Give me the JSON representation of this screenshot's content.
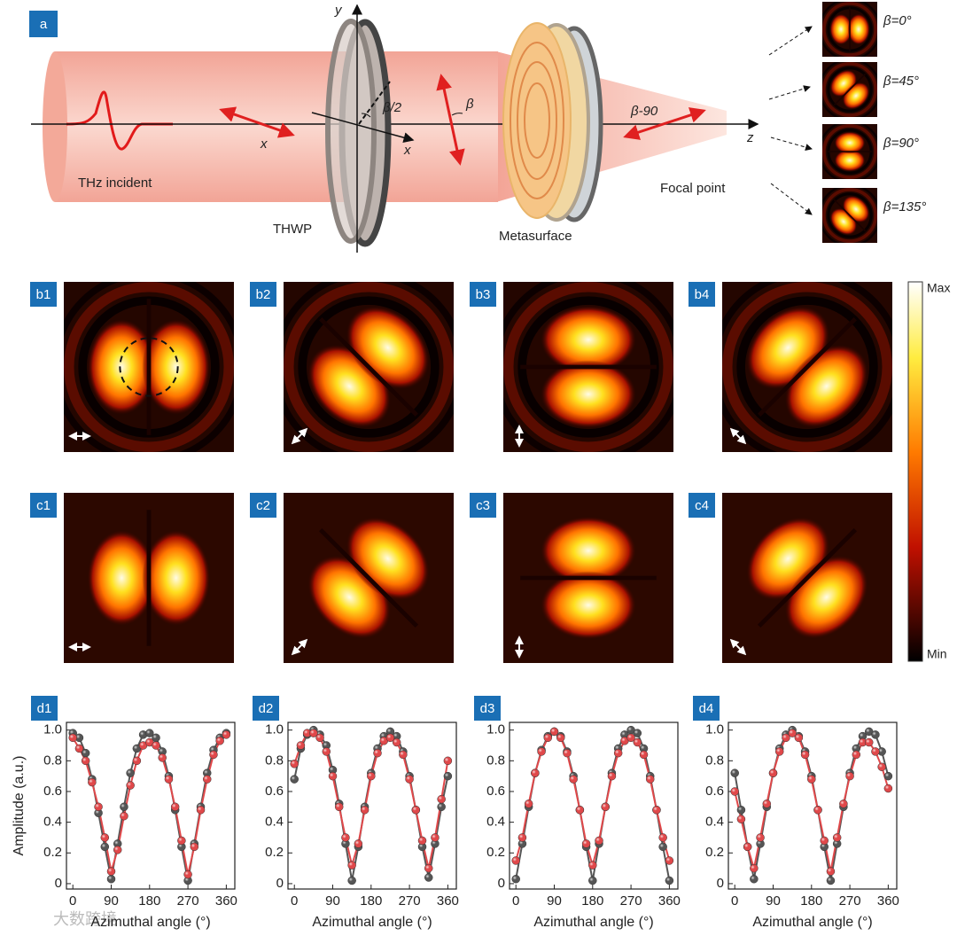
{
  "panel_a": {
    "label": "a",
    "axes": {
      "y": "y",
      "x": "x",
      "z": "z"
    },
    "half_angle": "β/2",
    "angle": "β",
    "incident_pol": "x",
    "focal_pol": "β-90",
    "incident": "THz incident",
    "plate": "THWP",
    "metasurface": "Metasurface",
    "focal_point": "Focal point",
    "insets": [
      "β=0°",
      "β=45°",
      "β=90°",
      "β=135°"
    ]
  },
  "colorbar": {
    "max": "Max",
    "min": "Min"
  },
  "simulation_panels": [
    "b1",
    "b2",
    "b3",
    "b4"
  ],
  "experiment_panels": [
    "c1",
    "c2",
    "c3",
    "c4"
  ],
  "watermark": "大数跨境",
  "chart_data": [
    {
      "type": "line",
      "label": "d1",
      "xlabel": "Azimuthal angle (°)",
      "ylabel": "Amplitude (a.u.)",
      "xlim": [
        -15,
        380
      ],
      "ylim": [
        -0.035,
        1.05
      ],
      "xticks": [
        0,
        90,
        180,
        270,
        360
      ],
      "yticks": [
        0,
        0.2,
        0.4,
        0.6,
        0.8,
        {
          "value": 1,
          "label": "1.0"
        }
      ],
      "x": [
        0,
        15,
        30,
        45,
        60,
        75,
        90,
        105,
        120,
        135,
        150,
        165,
        180,
        195,
        210,
        225,
        240,
        255,
        270,
        285,
        300,
        315,
        330,
        345,
        360
      ],
      "series": [
        {
          "color": "#555555",
          "values": [
            0.98,
            0.95,
            0.85,
            0.68,
            0.46,
            0.24,
            0.03,
            0.26,
            0.5,
            0.72,
            0.88,
            0.97,
            0.98,
            0.95,
            0.86,
            0.7,
            0.48,
            0.24,
            0.02,
            0.26,
            0.5,
            0.72,
            0.87,
            0.95,
            0.98
          ]
        },
        {
          "color": "#e0484a",
          "values": [
            0.95,
            0.88,
            0.8,
            0.66,
            0.5,
            0.3,
            0.08,
            0.22,
            0.44,
            0.64,
            0.8,
            0.9,
            0.92,
            0.9,
            0.82,
            0.68,
            0.5,
            0.28,
            0.06,
            0.24,
            0.48,
            0.68,
            0.84,
            0.93,
            0.97
          ]
        }
      ]
    },
    {
      "type": "line",
      "label": "d2",
      "xlabel": "Azimuthal angle (°)",
      "xlim": [
        -15,
        380
      ],
      "ylim": [
        -0.035,
        1.05
      ],
      "xticks": [
        0,
        90,
        180,
        270,
        360
      ],
      "yticks": [
        0,
        0.2,
        0.4,
        0.6,
        0.8,
        {
          "value": 1,
          "label": "1.0"
        }
      ],
      "x": [
        0,
        15,
        30,
        45,
        60,
        75,
        90,
        105,
        120,
        135,
        150,
        165,
        180,
        195,
        210,
        225,
        240,
        255,
        270,
        285,
        300,
        315,
        330,
        345,
        360
      ],
      "series": [
        {
          "color": "#555555",
          "values": [
            0.68,
            0.88,
            0.97,
            1.0,
            0.97,
            0.9,
            0.74,
            0.52,
            0.26,
            0.02,
            0.24,
            0.5,
            0.72,
            0.88,
            0.96,
            0.99,
            0.96,
            0.86,
            0.7,
            0.48,
            0.24,
            0.04,
            0.26,
            0.5,
            0.7
          ]
        },
        {
          "color": "#e0484a",
          "values": [
            0.78,
            0.9,
            0.98,
            0.98,
            0.95,
            0.86,
            0.7,
            0.5,
            0.3,
            0.12,
            0.26,
            0.48,
            0.7,
            0.85,
            0.93,
            0.95,
            0.92,
            0.84,
            0.68,
            0.48,
            0.28,
            0.1,
            0.3,
            0.55,
            0.8
          ]
        }
      ]
    },
    {
      "type": "line",
      "label": "d3",
      "xlabel": "Azimuthal angle (°)",
      "xlim": [
        -15,
        380
      ],
      "ylim": [
        -0.035,
        1.05
      ],
      "xticks": [
        0,
        90,
        180,
        270,
        360
      ],
      "yticks": [
        0,
        0.2,
        0.4,
        0.6,
        0.8,
        {
          "value": 1,
          "label": "1.0"
        }
      ],
      "x": [
        0,
        15,
        30,
        45,
        60,
        75,
        90,
        105,
        120,
        135,
        150,
        165,
        180,
        195,
        210,
        225,
        240,
        255,
        270,
        285,
        300,
        315,
        330,
        345,
        360
      ],
      "series": [
        {
          "color": "#555555",
          "values": [
            0.03,
            0.26,
            0.5,
            0.72,
            0.87,
            0.96,
            0.99,
            0.96,
            0.86,
            0.7,
            0.48,
            0.24,
            0.02,
            0.26,
            0.5,
            0.72,
            0.88,
            0.97,
            1.0,
            0.98,
            0.88,
            0.7,
            0.48,
            0.24,
            0.02
          ]
        },
        {
          "color": "#e0484a",
          "values": [
            0.15,
            0.3,
            0.52,
            0.72,
            0.86,
            0.95,
            0.99,
            0.95,
            0.85,
            0.68,
            0.48,
            0.26,
            0.12,
            0.28,
            0.5,
            0.7,
            0.85,
            0.93,
            0.95,
            0.92,
            0.84,
            0.68,
            0.48,
            0.3,
            0.15
          ]
        }
      ]
    },
    {
      "type": "line",
      "label": "d4",
      "xlabel": "Azimuthal angle (°)",
      "xlim": [
        -15,
        380
      ],
      "ylim": [
        -0.035,
        1.05
      ],
      "xticks": [
        0,
        90,
        180,
        270,
        360
      ],
      "yticks": [
        0,
        0.2,
        0.4,
        0.6,
        0.8,
        {
          "value": 1,
          "label": "1.0"
        }
      ],
      "x": [
        0,
        15,
        30,
        45,
        60,
        75,
        90,
        105,
        120,
        135,
        150,
        165,
        180,
        195,
        210,
        225,
        240,
        255,
        270,
        285,
        300,
        315,
        330,
        345,
        360
      ],
      "series": [
        {
          "color": "#555555",
          "values": [
            0.72,
            0.48,
            0.24,
            0.03,
            0.26,
            0.5,
            0.72,
            0.88,
            0.97,
            1.0,
            0.96,
            0.86,
            0.7,
            0.48,
            0.24,
            0.02,
            0.26,
            0.5,
            0.72,
            0.88,
            0.96,
            0.99,
            0.97,
            0.86,
            0.7
          ]
        },
        {
          "color": "#e0484a",
          "values": [
            0.6,
            0.42,
            0.24,
            0.1,
            0.3,
            0.52,
            0.72,
            0.86,
            0.95,
            0.98,
            0.95,
            0.84,
            0.68,
            0.48,
            0.28,
            0.08,
            0.3,
            0.52,
            0.7,
            0.84,
            0.92,
            0.92,
            0.86,
            0.76,
            0.62
          ]
        }
      ]
    }
  ]
}
